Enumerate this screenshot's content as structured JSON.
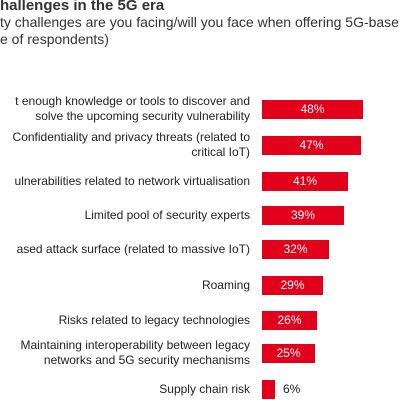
{
  "chart_data": {
    "type": "bar",
    "orientation": "horizontal",
    "title": "hallenges in the 5G era",
    "subtitle": "ty challenges are you facing/will you face when offering 5G-base\ne of respondents)",
    "categories": [
      "t enough knowledge or tools to discover and\nsolve the upcoming security vulnerability",
      "Confidentiality and privacy threats (related to\ncritical IoT)",
      "ulnerabilities related to network virtualisation",
      "Limited pool of security experts",
      "ased attack surface (related to massive IoT)",
      "Roaming",
      "Risks related to legacy technologies",
      "Maintaining interoperability between legacy\nnetworks and 5G security mechanisms",
      "Supply chain risk"
    ],
    "values": [
      48,
      47,
      41,
      39,
      32,
      29,
      26,
      25,
      6
    ],
    "value_labels": [
      "48%",
      "47%",
      "41%",
      "39%",
      "32%",
      "29%",
      "26%",
      "25%",
      "6%"
    ],
    "xlim": [
      0,
      48
    ],
    "bar_color": "#e3001b",
    "grid": false
  }
}
